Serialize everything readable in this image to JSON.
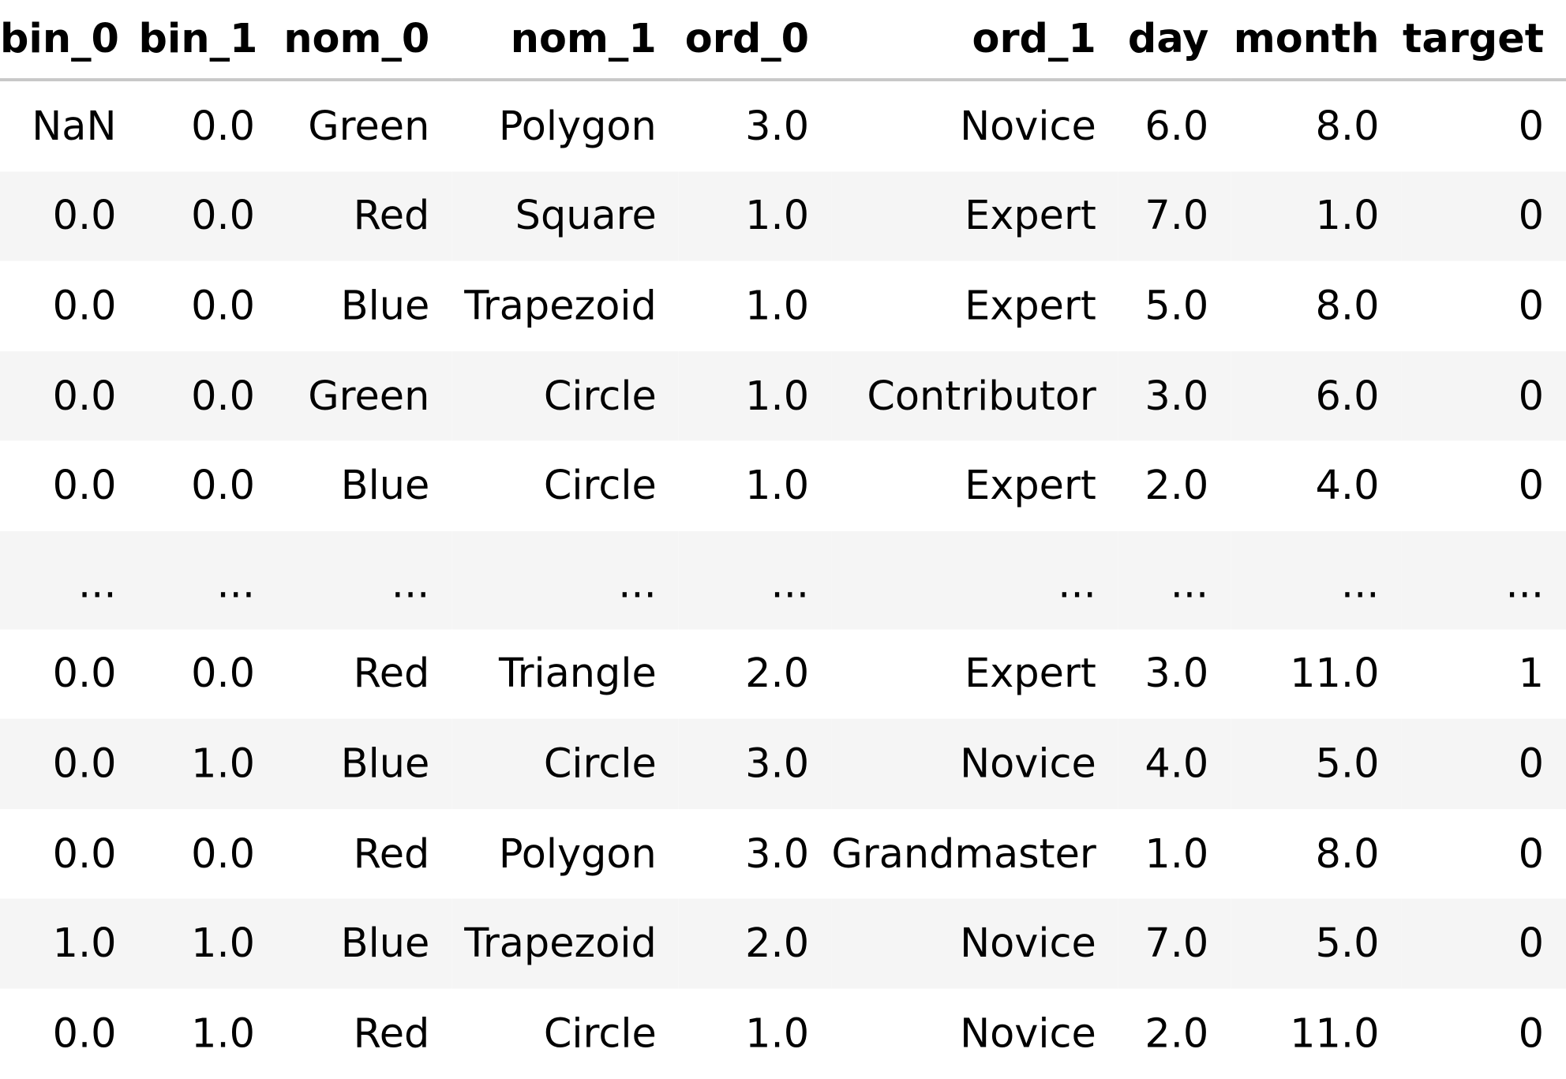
{
  "table": {
    "columns": [
      "bin_0",
      "bin_1",
      "nom_0",
      "nom_1",
      "ord_0",
      "ord_1",
      "day",
      "month",
      "target"
    ],
    "rows": [
      [
        "NaN",
        "0.0",
        "Green",
        "Polygon",
        "3.0",
        "Novice",
        "6.0",
        "8.0",
        "0"
      ],
      [
        "0.0",
        "0.0",
        "Red",
        "Square",
        "1.0",
        "Expert",
        "7.0",
        "1.0",
        "0"
      ],
      [
        "0.0",
        "0.0",
        "Blue",
        "Trapezoid",
        "1.0",
        "Expert",
        "5.0",
        "8.0",
        "0"
      ],
      [
        "0.0",
        "0.0",
        "Green",
        "Circle",
        "1.0",
        "Contributor",
        "3.0",
        "6.0",
        "0"
      ],
      [
        "0.0",
        "0.0",
        "Blue",
        "Circle",
        "1.0",
        "Expert",
        "2.0",
        "4.0",
        "0"
      ],
      [
        "...",
        "...",
        "...",
        "...",
        "...",
        "...",
        "...",
        "...",
        "..."
      ],
      [
        "0.0",
        "0.0",
        "Red",
        "Triangle",
        "2.0",
        "Expert",
        "3.0",
        "11.0",
        "1"
      ],
      [
        "0.0",
        "1.0",
        "Blue",
        "Circle",
        "3.0",
        "Novice",
        "4.0",
        "5.0",
        "0"
      ],
      [
        "0.0",
        "0.0",
        "Red",
        "Polygon",
        "3.0",
        "Grandmaster",
        "1.0",
        "8.0",
        "0"
      ],
      [
        "1.0",
        "1.0",
        "Blue",
        "Trapezoid",
        "2.0",
        "Novice",
        "7.0",
        "5.0",
        "0"
      ],
      [
        "0.0",
        "1.0",
        "Red",
        "Circle",
        "1.0",
        "Novice",
        "2.0",
        "11.0",
        "0"
      ]
    ]
  },
  "colors": {
    "stripe": "#f5f5f5",
    "background": "#ffffff",
    "header_rule": "#c8c8c8",
    "text": "#000000"
  }
}
